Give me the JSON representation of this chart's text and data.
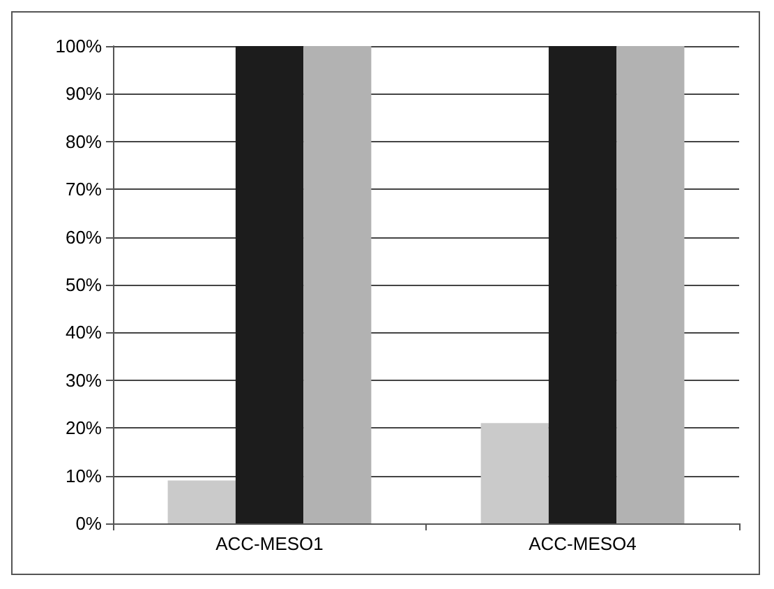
{
  "chart_data": {
    "type": "bar",
    "categories": [
      "ACC-MESO1",
      "ACC-MESO4"
    ],
    "series": [
      {
        "color": "#cacaca",
        "values": [
          9,
          21
        ]
      },
      {
        "color": "#1c1c1c",
        "values": [
          100,
          100
        ]
      },
      {
        "color": "#b2b2b2",
        "values": [
          100,
          100
        ]
      }
    ],
    "ylim": [
      0,
      100
    ],
    "yticks": [
      {
        "value": 0,
        "label": "0%"
      },
      {
        "value": 10,
        "label": "10%"
      },
      {
        "value": 20,
        "label": "20%"
      },
      {
        "value": 30,
        "label": "30%"
      },
      {
        "value": 40,
        "label": "40%"
      },
      {
        "value": 50,
        "label": "50%"
      },
      {
        "value": 60,
        "label": "60%"
      },
      {
        "value": 70,
        "label": "70%"
      },
      {
        "value": 80,
        "label": "80%"
      },
      {
        "value": 90,
        "label": "90%"
      },
      {
        "value": 100,
        "label": "100%"
      }
    ],
    "grid": "y"
  }
}
